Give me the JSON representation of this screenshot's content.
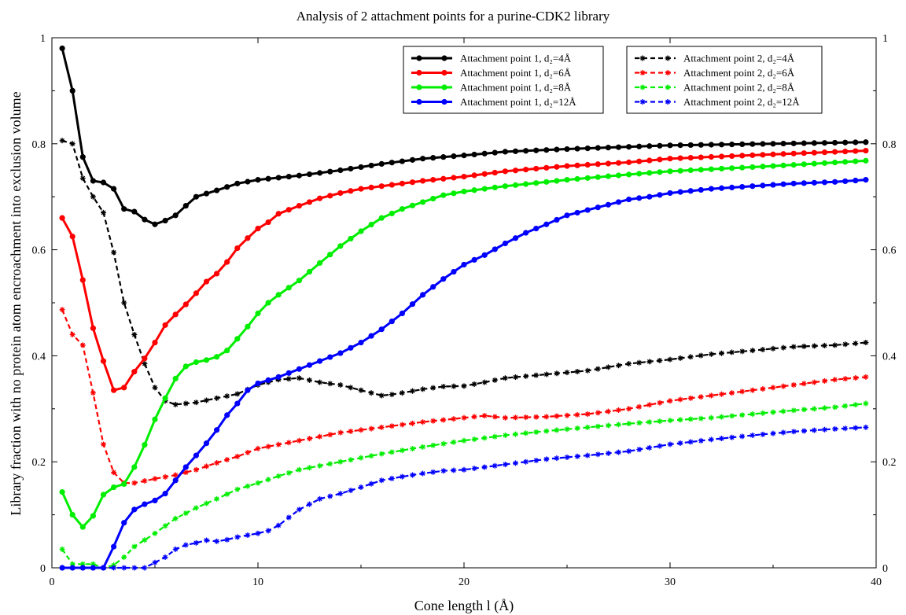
{
  "chart_data": {
    "type": "line",
    "title": "Analysis of 2 attachment points for a purine-CDK2 library",
    "xlabel": "Cone length l (Å)",
    "ylabel": "Library fraction with no protein atom encroachment into exclusion volume",
    "xlim": [
      0,
      40
    ],
    "ylim": [
      0,
      1
    ],
    "right_axis": true,
    "grid": false,
    "legend": "top-right, two boxes",
    "x_ticks": [
      "0",
      "10",
      "20",
      "30",
      "40"
    ],
    "y_ticks": [
      "0",
      "0.2",
      "0.4",
      "0.6",
      "0.8",
      "1"
    ],
    "series": [
      {
        "name": "Attachment point 1, d₂=4Å",
        "color": "#000000",
        "style": "solid",
        "marker": "dot",
        "points": [
          [
            0.5,
            0.98
          ],
          [
            1,
            0.9
          ],
          [
            1.5,
            0.775
          ],
          [
            2,
            0.73
          ],
          [
            2.5,
            0.727
          ],
          [
            3,
            0.715
          ],
          [
            3.5,
            0.677
          ],
          [
            4,
            0.672
          ],
          [
            4.5,
            0.657
          ],
          [
            5,
            0.648
          ],
          [
            5.5,
            0.655
          ],
          [
            6,
            0.665
          ],
          [
            6.5,
            0.683
          ],
          [
            7,
            0.7
          ],
          [
            8,
            0.712
          ],
          [
            9,
            0.725
          ],
          [
            10,
            0.732
          ],
          [
            12,
            0.74
          ],
          [
            14,
            0.75
          ],
          [
            16,
            0.762
          ],
          [
            18,
            0.772
          ],
          [
            20,
            0.778
          ],
          [
            22,
            0.785
          ],
          [
            25,
            0.79
          ],
          [
            30,
            0.797
          ],
          [
            35,
            0.8
          ],
          [
            39.5,
            0.803
          ]
        ]
      },
      {
        "name": "Attachment point 1, d₂=6Å",
        "color": "#ff0000",
        "style": "solid",
        "marker": "dot",
        "points": [
          [
            0.5,
            0.66
          ],
          [
            1,
            0.625
          ],
          [
            1.5,
            0.543
          ],
          [
            2,
            0.452
          ],
          [
            2.5,
            0.39
          ],
          [
            3,
            0.335
          ],
          [
            3.5,
            0.34
          ],
          [
            4,
            0.37
          ],
          [
            4.5,
            0.395
          ],
          [
            5,
            0.425
          ],
          [
            5.5,
            0.458
          ],
          [
            6,
            0.478
          ],
          [
            6.5,
            0.497
          ],
          [
            7,
            0.518
          ],
          [
            7.5,
            0.54
          ],
          [
            8,
            0.555
          ],
          [
            8.5,
            0.577
          ],
          [
            9,
            0.603
          ],
          [
            9.5,
            0.622
          ],
          [
            10,
            0.64
          ],
          [
            10.5,
            0.652
          ],
          [
            11,
            0.668
          ],
          [
            12,
            0.683
          ],
          [
            13,
            0.697
          ],
          [
            14,
            0.707
          ],
          [
            15,
            0.715
          ],
          [
            16,
            0.72
          ],
          [
            18,
            0.73
          ],
          [
            20,
            0.738
          ],
          [
            22,
            0.748
          ],
          [
            25,
            0.758
          ],
          [
            28,
            0.765
          ],
          [
            30,
            0.772
          ],
          [
            35,
            0.78
          ],
          [
            39.5,
            0.787
          ]
        ]
      },
      {
        "name": "Attachment point 1, d₂=8Å",
        "color": "#00ee00",
        "style": "solid",
        "marker": "dot",
        "points": [
          [
            0.5,
            0.143
          ],
          [
            1,
            0.1
          ],
          [
            1.5,
            0.077
          ],
          [
            2,
            0.098
          ],
          [
            2.5,
            0.138
          ],
          [
            3,
            0.152
          ],
          [
            3.5,
            0.158
          ],
          [
            4,
            0.19
          ],
          [
            4.5,
            0.232
          ],
          [
            5,
            0.28
          ],
          [
            5.5,
            0.32
          ],
          [
            6,
            0.357
          ],
          [
            6.5,
            0.38
          ],
          [
            7,
            0.388
          ],
          [
            7.5,
            0.392
          ],
          [
            8,
            0.398
          ],
          [
            8.5,
            0.41
          ],
          [
            9,
            0.432
          ],
          [
            9.5,
            0.455
          ],
          [
            10,
            0.48
          ],
          [
            10.5,
            0.5
          ],
          [
            11,
            0.515
          ],
          [
            12,
            0.542
          ],
          [
            13,
            0.575
          ],
          [
            14,
            0.607
          ],
          [
            15,
            0.635
          ],
          [
            16,
            0.66
          ],
          [
            17,
            0.677
          ],
          [
            18,
            0.69
          ],
          [
            19,
            0.703
          ],
          [
            20,
            0.71
          ],
          [
            22,
            0.72
          ],
          [
            25,
            0.732
          ],
          [
            28,
            0.742
          ],
          [
            30,
            0.748
          ],
          [
            35,
            0.758
          ],
          [
            39.5,
            0.768
          ]
        ]
      },
      {
        "name": "Attachment point 1, d₂=12Å",
        "color": "#0000ff",
        "style": "solid",
        "marker": "dot",
        "points": [
          [
            0.5,
            0
          ],
          [
            2,
            0
          ],
          [
            2.5,
            0
          ],
          [
            3,
            0.04
          ],
          [
            3.5,
            0.085
          ],
          [
            4,
            0.11
          ],
          [
            4.5,
            0.12
          ],
          [
            5,
            0.127
          ],
          [
            5.5,
            0.14
          ],
          [
            6,
            0.165
          ],
          [
            6.5,
            0.19
          ],
          [
            7,
            0.212
          ],
          [
            7.5,
            0.235
          ],
          [
            8,
            0.26
          ],
          [
            8.5,
            0.288
          ],
          [
            9,
            0.31
          ],
          [
            9.5,
            0.335
          ],
          [
            10,
            0.348
          ],
          [
            11,
            0.36
          ],
          [
            12,
            0.375
          ],
          [
            13,
            0.39
          ],
          [
            14,
            0.405
          ],
          [
            15,
            0.425
          ],
          [
            16,
            0.45
          ],
          [
            17,
            0.48
          ],
          [
            18,
            0.515
          ],
          [
            19,
            0.545
          ],
          [
            20,
            0.572
          ],
          [
            21,
            0.59
          ],
          [
            22,
            0.612
          ],
          [
            23,
            0.632
          ],
          [
            24,
            0.648
          ],
          [
            25,
            0.665
          ],
          [
            26,
            0.675
          ],
          [
            27,
            0.685
          ],
          [
            28,
            0.695
          ],
          [
            29,
            0.7
          ],
          [
            30,
            0.707
          ],
          [
            32,
            0.715
          ],
          [
            34,
            0.72
          ],
          [
            36,
            0.725
          ],
          [
            38,
            0.728
          ],
          [
            39.5,
            0.732
          ]
        ]
      },
      {
        "name": "Attachment point 2, d₂=4Å",
        "color": "#000000",
        "style": "dashed",
        "marker": "star",
        "points": [
          [
            0.5,
            0.806
          ],
          [
            1,
            0.8
          ],
          [
            1.5,
            0.735
          ],
          [
            2,
            0.7
          ],
          [
            2.5,
            0.67
          ],
          [
            3,
            0.595
          ],
          [
            3.5,
            0.5
          ],
          [
            4,
            0.44
          ],
          [
            4.5,
            0.385
          ],
          [
            5,
            0.34
          ],
          [
            5.5,
            0.315
          ],
          [
            6,
            0.308
          ],
          [
            7,
            0.312
          ],
          [
            8,
            0.32
          ],
          [
            9,
            0.328
          ],
          [
            10,
            0.345
          ],
          [
            11,
            0.355
          ],
          [
            12,
            0.358
          ],
          [
            13,
            0.35
          ],
          [
            14,
            0.345
          ],
          [
            15,
            0.335
          ],
          [
            16,
            0.325
          ],
          [
            16.5,
            0.327
          ],
          [
            17,
            0.33
          ],
          [
            18,
            0.337
          ],
          [
            19,
            0.342
          ],
          [
            20,
            0.343
          ],
          [
            21,
            0.35
          ],
          [
            22,
            0.358
          ],
          [
            24,
            0.365
          ],
          [
            26,
            0.372
          ],
          [
            28,
            0.385
          ],
          [
            30,
            0.393
          ],
          [
            32,
            0.403
          ],
          [
            34,
            0.41
          ],
          [
            36,
            0.417
          ],
          [
            38,
            0.42
          ],
          [
            39.5,
            0.425
          ]
        ]
      },
      {
        "name": "Attachment point 2, d₂=6Å",
        "color": "#ff0000",
        "style": "dashed",
        "marker": "star",
        "points": [
          [
            0.5,
            0.487
          ],
          [
            1,
            0.44
          ],
          [
            1.5,
            0.42
          ],
          [
            2,
            0.33
          ],
          [
            2.5,
            0.233
          ],
          [
            3,
            0.18
          ],
          [
            3.5,
            0.16
          ],
          [
            4,
            0.16
          ],
          [
            5,
            0.168
          ],
          [
            6,
            0.175
          ],
          [
            7,
            0.185
          ],
          [
            8,
            0.198
          ],
          [
            9,
            0.21
          ],
          [
            10,
            0.225
          ],
          [
            12,
            0.24
          ],
          [
            14,
            0.255
          ],
          [
            16,
            0.265
          ],
          [
            18,
            0.275
          ],
          [
            20,
            0.283
          ],
          [
            21,
            0.287
          ],
          [
            22,
            0.283
          ],
          [
            24,
            0.285
          ],
          [
            26,
            0.29
          ],
          [
            28,
            0.3
          ],
          [
            30,
            0.315
          ],
          [
            32,
            0.325
          ],
          [
            34,
            0.335
          ],
          [
            36,
            0.345
          ],
          [
            38,
            0.355
          ],
          [
            39.5,
            0.36
          ]
        ]
      },
      {
        "name": "Attachment point 2, d₂=8Å",
        "color": "#00ee00",
        "style": "dashed",
        "marker": "star",
        "points": [
          [
            0.5,
            0.035
          ],
          [
            1,
            0.007
          ],
          [
            2,
            0.007
          ],
          [
            2.5,
            0
          ],
          [
            3,
            0.005
          ],
          [
            3.5,
            0.02
          ],
          [
            4,
            0.04
          ],
          [
            5,
            0.065
          ],
          [
            6,
            0.093
          ],
          [
            7,
            0.113
          ],
          [
            8,
            0.13
          ],
          [
            9,
            0.148
          ],
          [
            10,
            0.16
          ],
          [
            11,
            0.173
          ],
          [
            12,
            0.185
          ],
          [
            14,
            0.2
          ],
          [
            16,
            0.215
          ],
          [
            18,
            0.228
          ],
          [
            20,
            0.24
          ],
          [
            22,
            0.25
          ],
          [
            24,
            0.258
          ],
          [
            26,
            0.265
          ],
          [
            28,
            0.272
          ],
          [
            30,
            0.278
          ],
          [
            32,
            0.283
          ],
          [
            34,
            0.29
          ],
          [
            36,
            0.297
          ],
          [
            38,
            0.303
          ],
          [
            39.5,
            0.31
          ]
        ]
      },
      {
        "name": "Attachment point 2, d₂=12Å",
        "color": "#0000ff",
        "style": "dashed",
        "marker": "star",
        "points": [
          [
            0.5,
            0
          ],
          [
            4,
            0
          ],
          [
            4.5,
            0
          ],
          [
            5,
            0.01
          ],
          [
            5.5,
            0.02
          ],
          [
            6,
            0.035
          ],
          [
            6.5,
            0.043
          ],
          [
            7,
            0.047
          ],
          [
            7.5,
            0.052
          ],
          [
            8,
            0.05
          ],
          [
            8.5,
            0.053
          ],
          [
            9,
            0.058
          ],
          [
            10,
            0.065
          ],
          [
            10.5,
            0.07
          ],
          [
            11,
            0.08
          ],
          [
            11.5,
            0.095
          ],
          [
            12,
            0.11
          ],
          [
            13,
            0.13
          ],
          [
            14,
            0.14
          ],
          [
            15,
            0.152
          ],
          [
            16,
            0.165
          ],
          [
            17,
            0.172
          ],
          [
            18,
            0.178
          ],
          [
            19,
            0.183
          ],
          [
            20,
            0.185
          ],
          [
            22,
            0.195
          ],
          [
            24,
            0.205
          ],
          [
            26,
            0.212
          ],
          [
            28,
            0.22
          ],
          [
            30,
            0.233
          ],
          [
            32,
            0.242
          ],
          [
            34,
            0.25
          ],
          [
            36,
            0.257
          ],
          [
            38,
            0.262
          ],
          [
            39.5,
            0.265
          ]
        ]
      }
    ]
  }
}
